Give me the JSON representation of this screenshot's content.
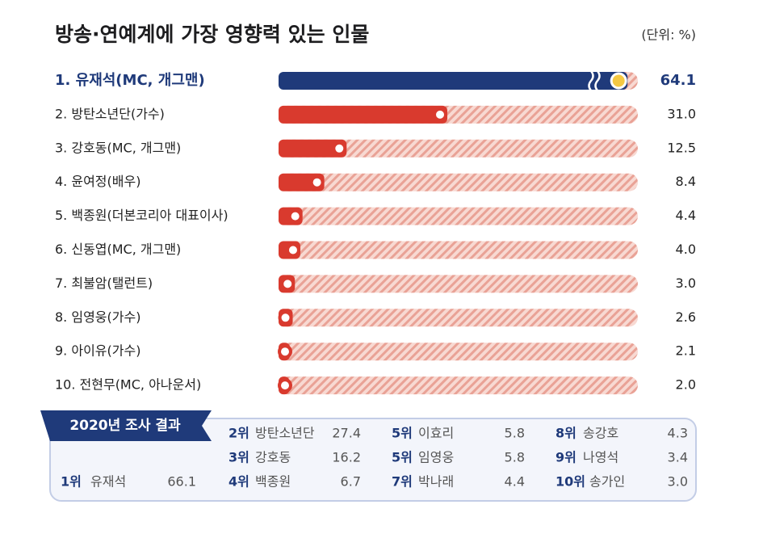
{
  "chart_data": {
    "type": "bar",
    "orientation": "horizontal",
    "title": "방송·연예계에 가장 영향력 있는 인물",
    "unit_label": "(단위: %)",
    "categories": [
      "1. 유재석(MC, 개그맨)",
      "2. 방탄소년단(가수)",
      "3. 강호동(MC, 개그맨)",
      "4. 윤여정(배우)",
      "5. 백종원(더본코리아 대표이사)",
      "6. 신동엽(MC, 개그맨)",
      "7. 최불암(탤런트)",
      "8. 임영웅(가수)",
      "9. 아이유(가수)",
      "10. 전현무(MC, 아나운서)"
    ],
    "values": [
      64.1,
      31.0,
      12.5,
      8.4,
      4.4,
      4.0,
      3.0,
      2.6,
      2.1,
      2.0
    ],
    "value_labels": [
      "64.1",
      "31.0",
      "12.5",
      "8.4",
      "4.4",
      "4.0",
      "3.0",
      "2.6",
      "2.1",
      "2.0"
    ],
    "xlim": [
      0,
      66
    ],
    "color": "#d93a2e",
    "highlight_color": "#1f3a7a"
  },
  "previous": {
    "title": "2020년 조사 결과",
    "entries": [
      {
        "rank": "1위",
        "name": "유재석",
        "value": "66.1"
      },
      {
        "rank": "2위",
        "name": "방탄소년단",
        "value": "27.4"
      },
      {
        "rank": "3위",
        "name": "강호동",
        "value": "16.2"
      },
      {
        "rank": "4위",
        "name": "백종원",
        "value": "6.7"
      },
      {
        "rank": "5위",
        "name": "이효리",
        "value": "5.8"
      },
      {
        "rank": "5위",
        "name": "임영웅",
        "value": "5.8"
      },
      {
        "rank": "7위",
        "name": "박나래",
        "value": "4.4"
      },
      {
        "rank": "8위",
        "name": "송강호",
        "value": "4.3"
      },
      {
        "rank": "9위",
        "name": "나영석",
        "value": "3.4"
      },
      {
        "rank": "10위",
        "name": "송가인",
        "value": "3.0"
      }
    ]
  }
}
